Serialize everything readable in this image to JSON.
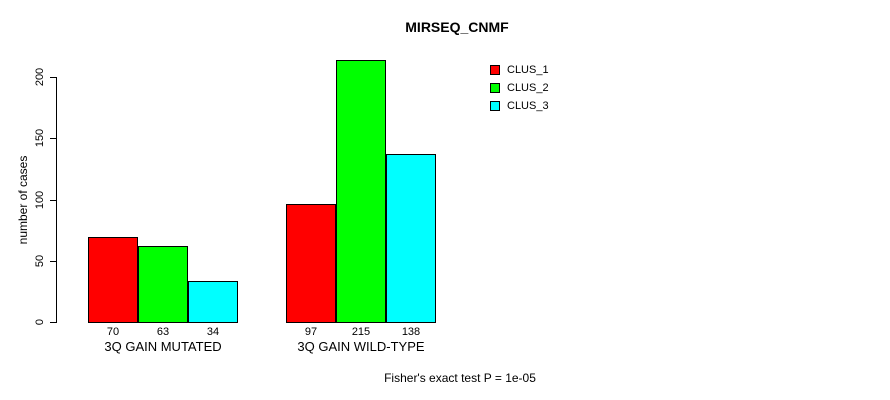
{
  "chart_data": {
    "type": "bar",
    "title": "MIRSEQ_CNMF",
    "ylabel": "number of cases",
    "xlabel": "",
    "ylim": [
      0,
      200
    ],
    "yticks": [
      0,
      50,
      100,
      150,
      200
    ],
    "grid": false,
    "legend_position": "top-right",
    "categories": [
      "3Q GAIN MUTATED",
      "3Q GAIN WILD-TYPE"
    ],
    "series": [
      {
        "name": "CLUS_1",
        "color": "#ff0000",
        "values": [
          70,
          97
        ]
      },
      {
        "name": "CLUS_2",
        "color": "#00ff00",
        "values": [
          63,
          215
        ]
      },
      {
        "name": "CLUS_3",
        "color": "#00ffff",
        "values": [
          34,
          138
        ]
      }
    ],
    "show_bar_values": true,
    "annotation": "Fisher's exact test P = 1e-05"
  }
}
